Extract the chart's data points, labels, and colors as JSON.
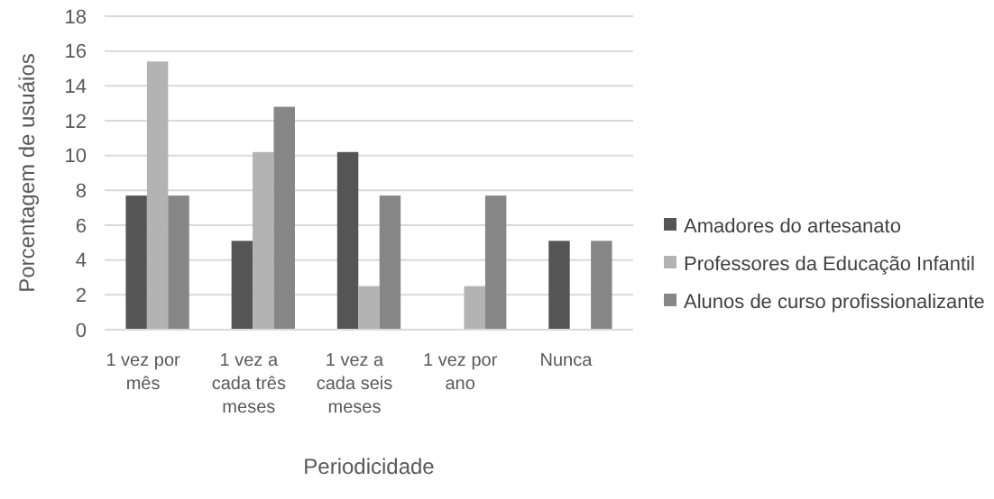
{
  "chart_data": {
    "type": "bar",
    "xlabel": "Periodicidade",
    "ylabel": "Porcentagem de usuáios",
    "categories": [
      "1 vez por mês",
      "1 vez a cada três meses",
      "1 vez a cada seis meses",
      "1 vez por ano",
      "Nunca"
    ],
    "series": [
      {
        "name": "Amadores do artesanato",
        "color": "#555555",
        "values": [
          7.7,
          5.1,
          10.2,
          0,
          5.1
        ]
      },
      {
        "name": "Professores da Educação Infantil",
        "color": "#b3b3b3",
        "values": [
          15.4,
          10.2,
          2.5,
          2.5,
          0
        ]
      },
      {
        "name": "Alunos de curso profissionalizante",
        "color": "#868686",
        "values": [
          7.7,
          12.8,
          7.7,
          7.7,
          5.1
        ]
      }
    ],
    "ylim": [
      0,
      18
    ],
    "yticks": [
      0,
      2,
      4,
      6,
      8,
      10,
      12,
      14,
      16,
      18
    ],
    "grid": "y",
    "legend": "right"
  }
}
